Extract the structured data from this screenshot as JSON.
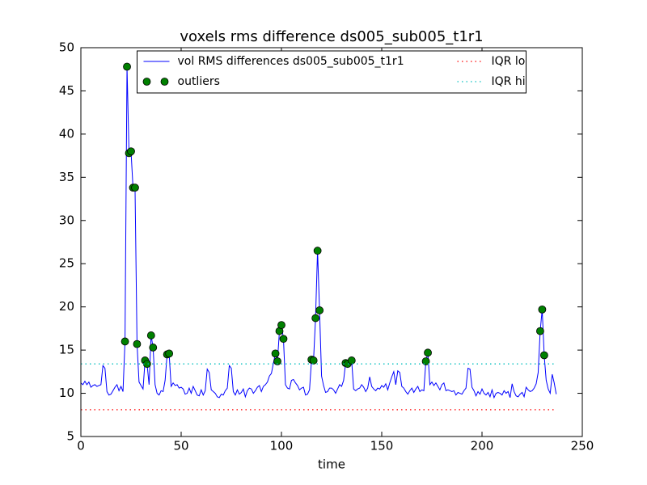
{
  "chart_data": {
    "type": "line",
    "title": "voxels rms difference ds005_sub005_t1r1",
    "x_label": "time",
    "xlim": [
      0,
      250
    ],
    "ylim": [
      5,
      50
    ],
    "xticks": [
      0,
      50,
      100,
      150,
      200,
      250
    ],
    "yticks": [
      5,
      10,
      15,
      20,
      25,
      30,
      35,
      40,
      45,
      50
    ],
    "legend": "upper center",
    "series": [
      {
        "name": "vol RMS differences ds005_sub005_t1r1",
        "color": "#0000ff",
        "linestyle": "solid",
        "x": [
          0,
          1,
          2,
          3,
          4,
          5,
          6,
          7,
          8,
          9,
          10,
          11,
          12,
          13,
          14,
          15,
          16,
          17,
          18,
          19,
          20,
          21,
          22,
          23,
          24,
          25,
          26,
          27,
          28,
          29,
          30,
          31,
          32,
          33,
          34,
          35,
          36,
          37,
          38,
          39,
          40,
          41,
          42,
          43,
          44,
          45,
          46,
          47,
          48,
          49,
          50,
          51,
          52,
          53,
          54,
          55,
          56,
          57,
          58,
          59,
          60,
          61,
          62,
          63,
          64,
          65,
          66,
          67,
          68,
          69,
          70,
          71,
          72,
          73,
          74,
          75,
          76,
          77,
          78,
          79,
          80,
          81,
          82,
          83,
          84,
          85,
          86,
          87,
          88,
          89,
          90,
          91,
          92,
          93,
          94,
          95,
          96,
          97,
          98,
          99,
          100,
          101,
          102,
          103,
          104,
          105,
          106,
          107,
          108,
          109,
          110,
          111,
          112,
          113,
          114,
          115,
          116,
          117,
          118,
          119,
          120,
          121,
          122,
          123,
          124,
          125,
          126,
          127,
          128,
          129,
          130,
          131,
          132,
          133,
          134,
          135,
          136,
          137,
          138,
          139,
          140,
          141,
          142,
          143,
          144,
          145,
          146,
          147,
          148,
          149,
          150,
          151,
          152,
          153,
          154,
          155,
          156,
          157,
          158,
          159,
          160,
          161,
          162,
          163,
          164,
          165,
          166,
          167,
          168,
          169,
          170,
          171,
          172,
          173,
          174,
          175,
          176,
          177,
          178,
          179,
          180,
          181,
          182,
          183,
          184,
          185,
          186,
          187,
          188,
          189,
          190,
          191,
          192,
          193,
          194,
          195,
          196,
          197,
          198,
          199,
          200,
          201,
          202,
          203,
          204,
          205,
          206,
          207,
          208,
          209,
          210,
          211,
          212,
          213,
          214,
          215,
          216,
          217,
          218,
          219,
          220,
          221,
          222,
          223,
          224,
          225,
          226,
          227,
          228,
          229,
          230,
          231,
          232,
          233,
          234,
          235,
          236,
          237
        ],
        "values": [
          11.2,
          11.0,
          11.4,
          11.0,
          11.3,
          10.7,
          10.9,
          11.0,
          10.8,
          10.9,
          11.0,
          13.2,
          12.9,
          10.2,
          9.8,
          9.9,
          10.3,
          10.7,
          11.0,
          10.3,
          10.8,
          10.2,
          16.0,
          47.8,
          37.8,
          38.0,
          33.8,
          33.8,
          15.7,
          11.3,
          10.9,
          10.5,
          13.8,
          13.4,
          11.0,
          16.7,
          15.3,
          11.0,
          10.0,
          9.8,
          10.3,
          10.2,
          11.5,
          14.5,
          14.6,
          10.8,
          11.2,
          10.9,
          11.0,
          10.6,
          10.7,
          10.5,
          9.9,
          10.0,
          10.6,
          10.0,
          10.8,
          10.3,
          9.8,
          9.7,
          10.4,
          9.8,
          10.3,
          12.8,
          12.4,
          10.4,
          10.2,
          10.0,
          9.6,
          9.5,
          9.9,
          9.8,
          10.3,
          10.6,
          13.2,
          12.9,
          10.2,
          9.8,
          10.4,
          9.9,
          10.1,
          10.5,
          9.6,
          10.3,
          10.6,
          10.5,
          10.0,
          10.3,
          10.7,
          10.9,
          10.2,
          10.8,
          11.0,
          11.3,
          12.0,
          12.3,
          13.5,
          14.6,
          13.7,
          17.2,
          17.9,
          16.3,
          11.0,
          10.6,
          10.5,
          11.5,
          11.6,
          11.2,
          10.9,
          10.4,
          10.6,
          10.7,
          9.8,
          9.9,
          10.4,
          13.9,
          13.8,
          18.7,
          26.5,
          19.6,
          12.0,
          10.9,
          10.1,
          10.2,
          10.6,
          10.6,
          10.4,
          10.0,
          10.5,
          11.0,
          10.8,
          11.5,
          13.5,
          13.4,
          13.6,
          13.8,
          10.5,
          10.3,
          10.5,
          10.6,
          11.0,
          10.7,
          10.2,
          10.6,
          11.9,
          10.8,
          10.5,
          10.3,
          10.6,
          10.5,
          10.9,
          10.7,
          11.1,
          10.4,
          11.2,
          11.9,
          12.5,
          11.0,
          12.6,
          12.4,
          10.8,
          10.6,
          10.2,
          9.9,
          10.3,
          10.6,
          10.1,
          10.5,
          10.8,
          10.2,
          10.4,
          10.3,
          13.7,
          14.7,
          11.0,
          11.3,
          10.9,
          11.2,
          10.8,
          10.4,
          11.0,
          11.2,
          10.3,
          10.4,
          10.3,
          10.2,
          10.3,
          9.8,
          10.1,
          10.0,
          9.9,
          10.3,
          10.6,
          12.9,
          12.8,
          10.7,
          10.3,
          9.7,
          10.2,
          9.9,
          10.5,
          10.0,
          9.8,
          10.1,
          9.6,
          10.4,
          9.5,
          10.0,
          10.1,
          10.0,
          9.8,
          10.3,
          10.0,
          10.2,
          9.5,
          11.1,
          10.2,
          9.7,
          9.6,
          9.9,
          10.1,
          9.6,
          10.7,
          10.4,
          10.2,
          10.3,
          10.6,
          11.1,
          12.4,
          17.2,
          19.7,
          14.4,
          11.5,
          10.5,
          10.0,
          12.2,
          11.2,
          9.9
        ]
      },
      {
        "name": "outliers",
        "color": "#008000",
        "linestyle": "none",
        "marker": "o",
        "x": [
          22,
          23,
          24,
          25,
          26,
          27,
          28,
          32,
          33,
          35,
          36,
          43,
          44,
          97,
          98,
          99,
          100,
          101,
          115,
          116,
          117,
          118,
          119,
          132,
          133,
          135,
          172,
          173,
          229,
          230,
          231
        ],
        "values": [
          16.0,
          47.8,
          37.8,
          38.0,
          33.8,
          33.8,
          15.7,
          13.8,
          13.4,
          16.7,
          15.3,
          14.5,
          14.6,
          14.6,
          13.7,
          17.2,
          17.9,
          16.3,
          13.9,
          13.8,
          18.7,
          26.5,
          19.6,
          13.5,
          13.4,
          13.8,
          13.7,
          14.7,
          17.2,
          19.7,
          14.4
        ]
      },
      {
        "name": "IQR lo",
        "color": "#ff0000",
        "linestyle": "dotted",
        "x": [
          0,
          237
        ],
        "values": [
          8.1,
          8.1
        ]
      },
      {
        "name": "IQR hi",
        "color": "#00bfbf",
        "linestyle": "dotted",
        "x": [
          0,
          237
        ],
        "values": [
          13.4,
          13.4
        ]
      }
    ]
  }
}
